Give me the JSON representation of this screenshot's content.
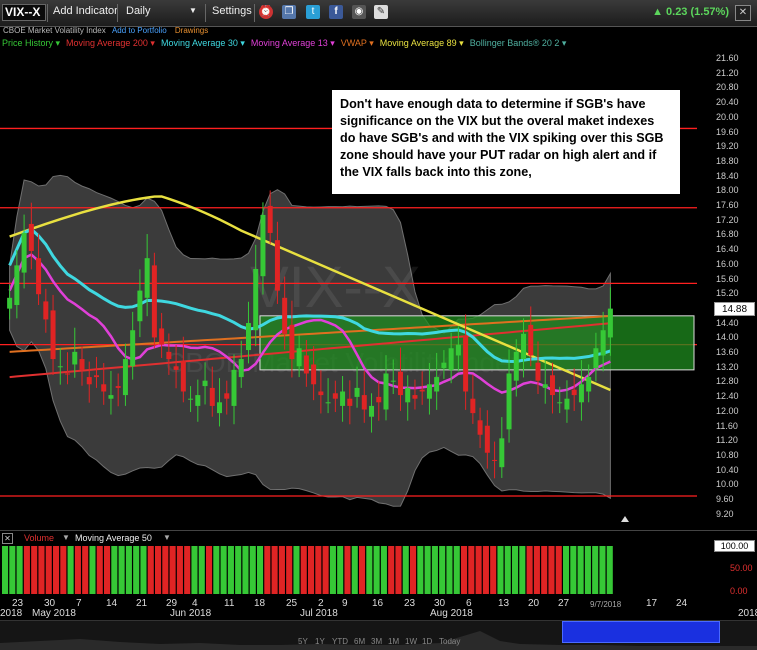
{
  "toolbar": {
    "symbol": "VIX--X",
    "add_indicator": "Add Indicator",
    "interval": "Daily",
    "settings": "Settings",
    "change": "0.23 (1.57%)"
  },
  "subheader": {
    "name": "CBOE Market Volatility Index",
    "add_portfolio": "Add to Portfolio",
    "drawings": "Drawings"
  },
  "legend": [
    {
      "label": "Price History",
      "color": "#36c836"
    },
    {
      "label": "Moving Average 200",
      "color": "#e03030"
    },
    {
      "label": "Moving Average 30",
      "color": "#3fd8e0"
    },
    {
      "label": "Moving Average 13",
      "color": "#e040d8"
    },
    {
      "label": "VWAP",
      "color": "#e07020"
    },
    {
      "label": "Moving Average 89",
      "color": "#e8e040"
    },
    {
      "label": "Bollinger Bands® 20 2",
      "color": "#50b0a0"
    }
  ],
  "watermark": {
    "symbol": "VIX--X",
    "name": "CBOE Market Volatility Index"
  },
  "price_axis": [
    "21.60",
    "21.20",
    "20.80",
    "20.40",
    "20.00",
    "19.60",
    "19.20",
    "18.80",
    "18.40",
    "18.00",
    "17.60",
    "17.20",
    "16.80",
    "16.40",
    "16.00",
    "15.60",
    "15.20",
    "14.80",
    "14.40",
    "14.00",
    "13.60",
    "13.20",
    "12.80",
    "12.40",
    "12.00",
    "11.60",
    "11.20",
    "10.80",
    "10.40",
    "10.00",
    "9.60",
    "9.20"
  ],
  "current_price": "14.88",
  "annotation": "Don't have enough data to determine if SGB's have significance on the VIX but the overal maket indexes do have SGB's and with the VIX spiking over this SGB zone should have your PUT radar on high alert and if the VIX falls back into this zone,",
  "volume_panel": {
    "volume_label": "Volume",
    "ma_label": "Moving Average 50",
    "scale_top": "100.00",
    "scale_mid": "50.00",
    "scale_bottom": "0.00"
  },
  "date_axis": {
    "days": [
      "23",
      "30",
      "7",
      "14",
      "21",
      "29",
      "4",
      "11",
      "18",
      "25",
      "2",
      "9",
      "16",
      "23",
      "30",
      "6",
      "13",
      "20",
      "27",
      "9/7/2018",
      "17",
      "24"
    ],
    "months": [
      "2018",
      "May 2018",
      "Jun 2018",
      "Jul 2018",
      "Aug 2018",
      "2018"
    ]
  },
  "range_buttons": [
    "5Y",
    "1Y",
    "YTD",
    "6M",
    "3M",
    "1M",
    "1W",
    "1D",
    "Today"
  ],
  "colors": {
    "up": "#36c836",
    "down": "#e02424",
    "ma200": "#e03030",
    "ma30": "#3fd8e0",
    "ma13": "#e040d8",
    "vwap": "#e07020",
    "ma89": "#e8e040",
    "band": "#50b0a0",
    "hline": "#ff2020",
    "zone": "#1f8c1f"
  },
  "chart_data": {
    "type": "candlestick",
    "ylim": [
      9.2,
      21.8
    ],
    "horizontal_lines": [
      19.9,
      17.7,
      15.6,
      13.9,
      9.7
    ],
    "zone": {
      "top": 14.7,
      "bottom": 13.2
    },
    "close": [
      15.2,
      16.1,
      17.0,
      16.5,
      15.3,
      14.6,
      13.5,
      13.3,
      13.1,
      13.7,
      13.2,
      12.8,
      13.0,
      12.6,
      12.5,
      12.7,
      13.5,
      14.3,
      15.4,
      16.3,
      14.1,
      13.9,
      13.5,
      13.2,
      12.6,
      12.4,
      12.5,
      12.9,
      12.2,
      12.3,
      12.4,
      13.2,
      13.5,
      14.5,
      16.0,
      17.5,
      17.0,
      15.4,
      14.2,
      13.5,
      13.8,
      13.1,
      12.8,
      12.5,
      12.3,
      12.4,
      12.6,
      12.2,
      12.7,
      12.1,
      12.2,
      12.3,
      13.1,
      12.9,
      12.5,
      12.7,
      12.4,
      12.6,
      12.8,
      13.0,
      13.4,
      13.8,
      13.9,
      12.6,
      12.0,
      11.4,
      10.9,
      10.7,
      11.3,
      13.1,
      13.7,
      14.2,
      13.6,
      12.9,
      12.8,
      12.5,
      12.3,
      12.4,
      12.5,
      12.8,
      13.0,
      13.8,
      14.3,
      14.9
    ]
  }
}
